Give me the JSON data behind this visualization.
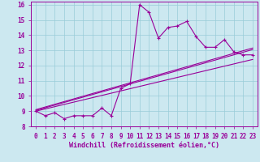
{
  "xlabel": "Windchill (Refroidissement éolien,°C)",
  "xlim": [
    -0.5,
    23.5
  ],
  "ylim": [
    8,
    16.2
  ],
  "xticks": [
    0,
    1,
    2,
    3,
    4,
    5,
    6,
    7,
    8,
    9,
    10,
    11,
    12,
    13,
    14,
    15,
    16,
    17,
    18,
    19,
    20,
    21,
    22,
    23
  ],
  "yticks": [
    8,
    9,
    10,
    11,
    12,
    13,
    14,
    15,
    16
  ],
  "bg_color": "#cce8f0",
  "grid_color": "#99ccd8",
  "line_color": "#990099",
  "zigzag_x": [
    0,
    1,
    2,
    3,
    4,
    5,
    6,
    7,
    8,
    9,
    10,
    11,
    12,
    13,
    14,
    15,
    16,
    17,
    18,
    19,
    20,
    21,
    22,
    23
  ],
  "zigzag_y": [
    9.0,
    8.7,
    8.9,
    8.5,
    8.7,
    8.7,
    8.7,
    9.2,
    8.7,
    10.5,
    10.8,
    16.0,
    15.5,
    13.8,
    14.5,
    14.6,
    14.9,
    13.9,
    13.2,
    13.2,
    13.7,
    12.9,
    12.7,
    12.7
  ],
  "line1_x": [
    0,
    23
  ],
  "line1_y": [
    9.0,
    12.4
  ],
  "line2_x": [
    0,
    23
  ],
  "line2_y": [
    9.05,
    13.05
  ],
  "line3_x": [
    0,
    23
  ],
  "line3_y": [
    9.1,
    13.15
  ]
}
